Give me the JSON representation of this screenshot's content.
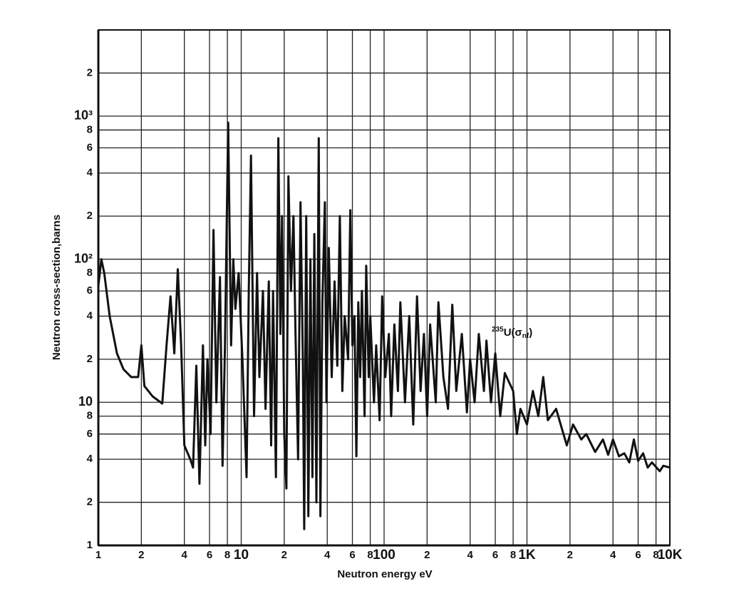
{
  "chart_data": {
    "type": "line",
    "x_label": "Neutron energy eV",
    "y_label": "Neutron cross-section,barns",
    "annotation": [
      "235",
      "U(σ",
      "nf",
      ")"
    ],
    "xscale": "log",
    "yscale": "log",
    "grid": true,
    "color": "#111111",
    "xlim": [
      1,
      10000
    ],
    "ylim": [
      1,
      4000
    ],
    "xticks": [
      1,
      2,
      4,
      6,
      8,
      10,
      {
        "value": 20,
        "label": "2"
      },
      {
        "value": 40,
        "label": "4"
      },
      {
        "value": 60,
        "label": "6"
      },
      {
        "value": 80,
        "label": "8"
      },
      100,
      {
        "value": 200,
        "label": "2"
      },
      {
        "value": 400,
        "label": "4"
      },
      {
        "value": 600,
        "label": "6"
      },
      {
        "value": 800,
        "label": "8"
      },
      {
        "value": 1000,
        "label": "1K"
      },
      {
        "value": 2000,
        "label": "2"
      },
      {
        "value": 4000,
        "label": "4"
      },
      {
        "value": 6000,
        "label": "6"
      },
      {
        "value": 8000,
        "label": "8"
      },
      {
        "value": 10000,
        "label": "10K"
      }
    ],
    "yticks": [
      1,
      2,
      4,
      6,
      8,
      10,
      {
        "value": 20,
        "label": "2"
      },
      {
        "value": 40,
        "label": "4"
      },
      {
        "value": 60,
        "label": "6"
      },
      {
        "value": 80,
        "label": "8"
      },
      {
        "value": 100,
        "label": "10²"
      },
      {
        "value": 200,
        "label": "2"
      },
      {
        "value": 400,
        "label": "4"
      },
      {
        "value": 600,
        "label": "6"
      },
      {
        "value": 800,
        "label": "8"
      },
      {
        "value": 1000,
        "label": "10³"
      },
      {
        "value": 2000,
        "label": "2"
      }
    ],
    "x": [
      1,
      1.05,
      1.1,
      1.2,
      1.35,
      1.5,
      1.7,
      1.9,
      2,
      2.1,
      2.4,
      2.8,
      3,
      3.2,
      3.4,
      3.6,
      3.8,
      4,
      4.4,
      4.6,
      4.85,
      5.1,
      5.4,
      5.6,
      5.8,
      6.1,
      6.4,
      6.7,
      7.1,
      7.4,
      7.7,
      8.1,
      8.5,
      8.8,
      9.1,
      9.6,
      10.2,
      10.9,
      11.3,
      11.7,
      12.3,
      12.9,
      13.4,
      14.2,
      14.8,
      15.6,
      16.2,
      16.7,
      17.5,
      18.2,
      18.8,
      19.3,
      20,
      20.7,
      21.4,
      22.3,
      23.2,
      24,
      25,
      26,
      27,
      27.6,
      28.5,
      29.5,
      30.5,
      31.5,
      32.5,
      33.6,
      34.9,
      35.8,
      37,
      38.5,
      39.5,
      41,
      43,
      45,
      47,
      49,
      51,
      53,
      56,
      58,
      60,
      62,
      64,
      66,
      68,
      70,
      73,
      75,
      78,
      80,
      85,
      88,
      93,
      97,
      102,
      108,
      112,
      118,
      125,
      130,
      140,
      150,
      160,
      170,
      180,
      190,
      200,
      210,
      230,
      240,
      260,
      280,
      300,
      320,
      350,
      380,
      400,
      430,
      460,
      500,
      520,
      560,
      600,
      650,
      700,
      800,
      850,
      900,
      1000,
      1100,
      1200,
      1300,
      1400,
      1600,
      1800,
      1900,
      2100,
      2400,
      2600,
      3000,
      3400,
      3700,
      4000,
      4400,
      4800,
      5200,
      5600,
      6000,
      6500,
      7000,
      7500,
      8500,
      9000,
      10000
    ],
    "values": [
      65,
      100,
      80,
      40,
      22,
      17,
      15,
      15,
      25,
      13,
      11,
      9.8,
      25,
      55,
      22,
      85,
      25,
      5,
      4,
      3.5,
      18,
      2.7,
      25,
      5,
      20,
      6,
      160,
      10,
      75,
      3.6,
      25,
      900,
      25,
      100,
      45,
      80,
      20,
      3,
      60,
      530,
      8,
      80,
      15,
      60,
      9,
      70,
      5,
      60,
      3,
      700,
      30,
      200,
      6,
      2.5,
      380,
      60,
      200,
      30,
      4,
      250,
      20,
      1.3,
      200,
      1.6,
      100,
      3,
      150,
      2,
      700,
      1.6,
      50,
      250,
      10,
      120,
      15,
      70,
      18,
      200,
      12,
      40,
      20,
      220,
      25,
      40,
      4.2,
      50,
      15,
      60,
      8,
      90,
      15,
      40,
      10,
      25,
      7.5,
      55,
      15,
      30,
      8,
      35,
      12,
      50,
      10,
      40,
      7,
      55,
      12,
      30,
      8,
      35,
      10,
      50,
      15,
      9,
      48,
      12,
      30,
      8.5,
      20,
      10,
      30,
      12,
      27,
      10,
      22,
      8,
      16,
      12,
      6,
      9,
      7,
      12,
      8,
      15,
      7.5,
      9,
      6,
      5,
      7,
      5.5,
      6,
      4.5,
      5.5,
      4.3,
      5.5,
      4.2,
      4.4,
      3.8,
      5.5,
      3.9,
      4.4,
      3.5,
      3.8,
      3.3,
      3.6,
      3.5
    ]
  }
}
